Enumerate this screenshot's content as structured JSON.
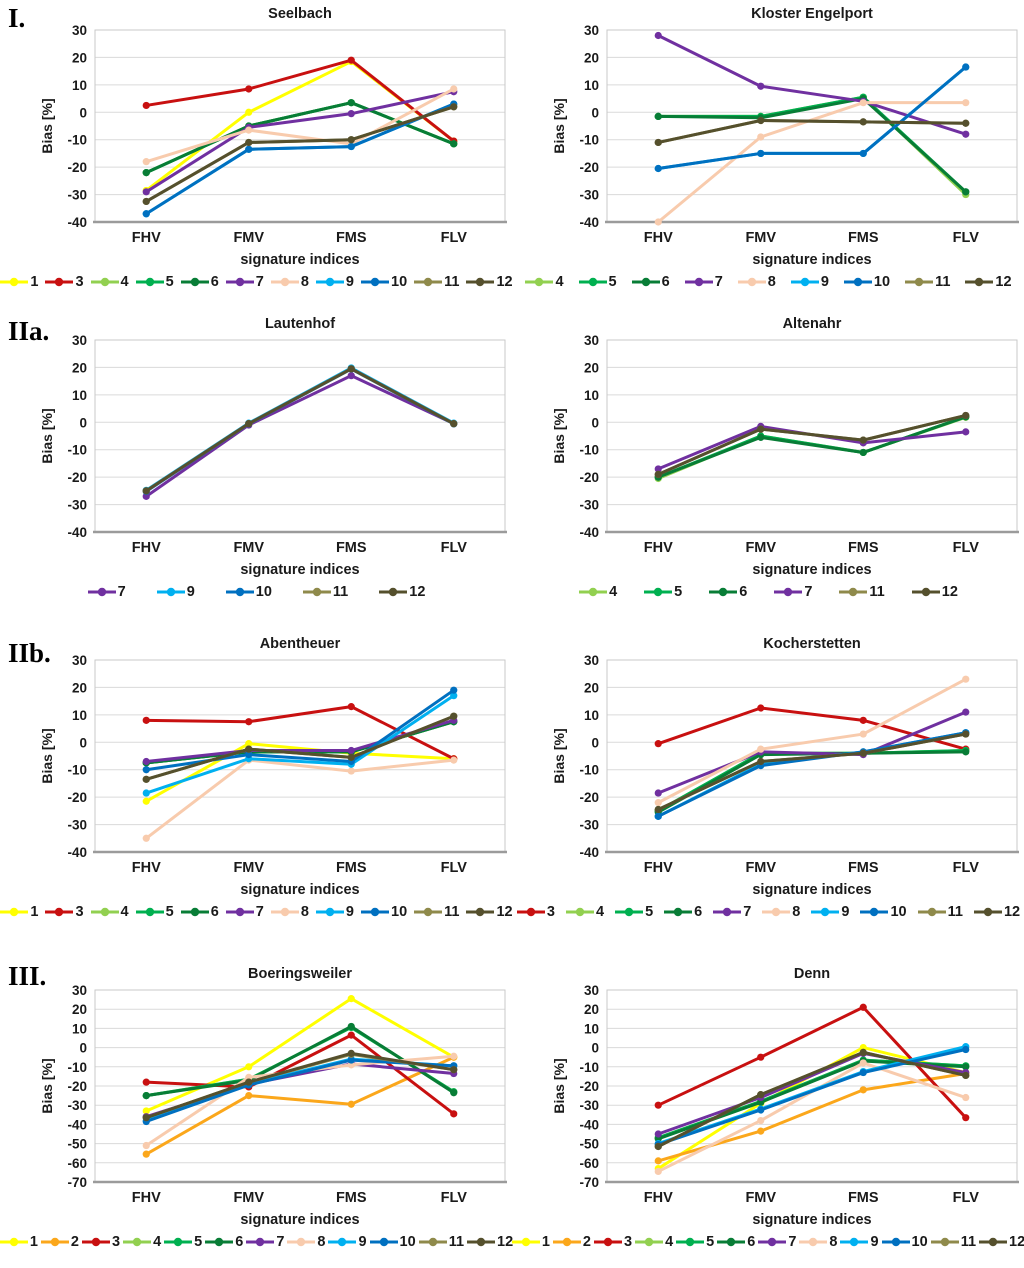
{
  "page": {
    "xlabel": "signature indices",
    "ylabel": "Bias [%]"
  },
  "row_labels": [
    "I.",
    "IIa.",
    "IIb.",
    "III."
  ],
  "series_colors": {
    "1": "#FFFF00",
    "2": "#FBA71B",
    "3": "#C81010",
    "4": "#92D050",
    "5": "#00B050",
    "6": "#087D36",
    "7": "#7030A0",
    "8": "#F8CBAD",
    "9": "#00B0F0",
    "10": "#0070C0",
    "11": "#8F8A4B",
    "12": "#55502D"
  },
  "chart_data": [
    {
      "type": "line",
      "title": "Seelbach",
      "categories": [
        "FHV",
        "FMV",
        "FMS",
        "FLV"
      ],
      "xlabel": "signature indices",
      "ylabel": "Bias [%]",
      "ylim": [
        -40,
        30
      ],
      "ytick_step": 10,
      "grid": true,
      "legend_position": "bottom",
      "series": [
        {
          "name": "1",
          "values": [
            -28.5,
            0,
            18.5,
            -10.5
          ]
        },
        {
          "name": "3",
          "values": [
            2.5,
            8.5,
            19,
            -10.5
          ]
        },
        {
          "name": "4",
          "values": [
            -22,
            -5,
            3.5,
            -11.5
          ]
        },
        {
          "name": "5",
          "values": [
            -22,
            -5,
            3.5,
            -11.5
          ]
        },
        {
          "name": "6",
          "values": [
            -22,
            -5,
            3.5,
            -11.5
          ]
        },
        {
          "name": "7",
          "values": [
            -29,
            -5.5,
            -0.5,
            7.5
          ]
        },
        {
          "name": "8",
          "values": [
            -18,
            -6.5,
            -11.5,
            8.5
          ]
        },
        {
          "name": "9",
          "values": [
            -37,
            -13.5,
            -12.5,
            3
          ]
        },
        {
          "name": "10",
          "values": [
            -37,
            -13.5,
            -12.5,
            3
          ]
        },
        {
          "name": "11",
          "values": [
            -32.5,
            -11,
            -10,
            2
          ]
        },
        {
          "name": "12",
          "values": [
            -32.5,
            -11,
            -10,
            2
          ]
        }
      ]
    },
    {
      "type": "line",
      "title": "Kloster Engelport",
      "categories": [
        "FHV",
        "FMV",
        "FMS",
        "FLV"
      ],
      "xlabel": "signature indices",
      "ylabel": "Bias [%]",
      "ylim": [
        -40,
        30
      ],
      "ytick_step": 10,
      "grid": true,
      "legend_position": "bottom",
      "series": [
        {
          "name": "4",
          "values": [
            -1.5,
            -1.5,
            5.5,
            -30
          ]
        },
        {
          "name": "5",
          "values": [
            -1.5,
            -1.5,
            5.5,
            -29
          ]
        },
        {
          "name": "6",
          "values": [
            -1.5,
            -2,
            5,
            -29
          ]
        },
        {
          "name": "7",
          "values": [
            28,
            9.5,
            4,
            -8
          ]
        },
        {
          "name": "8",
          "values": [
            -40,
            -9,
            3.5,
            3.5
          ]
        },
        {
          "name": "9",
          "values": [
            -20.5,
            -15,
            -15,
            16.5
          ]
        },
        {
          "name": "10",
          "values": [
            -20.5,
            -15,
            -15,
            16.5
          ]
        },
        {
          "name": "11",
          "values": [
            -11,
            -3,
            -3.5,
            -4
          ]
        },
        {
          "name": "12",
          "values": [
            -11,
            -3,
            -3.5,
            -4
          ]
        }
      ]
    },
    {
      "type": "line",
      "title": "Lautenhof",
      "categories": [
        "FHV",
        "FMV",
        "FMS",
        "FLV"
      ],
      "xlabel": "signature indices",
      "ylabel": "Bias [%]",
      "ylim": [
        -40,
        30
      ],
      "ytick_step": 10,
      "grid": true,
      "legend_position": "bottom",
      "series": [
        {
          "name": "7",
          "values": [
            -27,
            -1,
            17,
            -0.5
          ]
        },
        {
          "name": "9",
          "values": [
            -24.8,
            -0.3,
            19.8,
            -0.3
          ]
        },
        {
          "name": "10",
          "values": [
            -25.2,
            -0.6,
            19.4,
            -0.6
          ]
        },
        {
          "name": "11",
          "values": [
            -25,
            -0.5,
            19.5,
            -0.5
          ]
        },
        {
          "name": "12",
          "values": [
            -25,
            -0.5,
            19.5,
            -0.5
          ]
        }
      ]
    },
    {
      "type": "line",
      "title": "Altenahr",
      "categories": [
        "FHV",
        "FMV",
        "FMS",
        "FLV"
      ],
      "xlabel": "signature indices",
      "ylabel": "Bias [%]",
      "ylim": [
        -40,
        30
      ],
      "ytick_step": 10,
      "grid": true,
      "legend_position": "bottom",
      "series": [
        {
          "name": "4",
          "values": [
            -20.5,
            -5,
            -11,
            1.8
          ]
        },
        {
          "name": "5",
          "values": [
            -20,
            -5,
            -11,
            2
          ]
        },
        {
          "name": "6",
          "values": [
            -20,
            -5.5,
            -11,
            2
          ]
        },
        {
          "name": "7",
          "values": [
            -17,
            -1.5,
            -7.5,
            -3.5
          ]
        },
        {
          "name": "11",
          "values": [
            -19,
            -2.5,
            -6.5,
            2.5
          ]
        },
        {
          "name": "12",
          "values": [
            -19,
            -2.5,
            -6.5,
            2.5
          ]
        }
      ]
    },
    {
      "type": "line",
      "title": "Abentheuer",
      "categories": [
        "FHV",
        "FMV",
        "FMS",
        "FLV"
      ],
      "xlabel": "signature indices",
      "ylabel": "Bias [%]",
      "ylim": [
        -40,
        30
      ],
      "ytick_step": 10,
      "grid": true,
      "legend_position": "bottom",
      "series": [
        {
          "name": "1",
          "values": [
            -21.5,
            -0.5,
            -4,
            -6
          ]
        },
        {
          "name": "3",
          "values": [
            8,
            7.5,
            13,
            -6
          ]
        },
        {
          "name": "4",
          "values": [
            -7.5,
            -3.5,
            -3.5,
            7.5
          ]
        },
        {
          "name": "5",
          "values": [
            -7.5,
            -3.5,
            -3.5,
            7.5
          ]
        },
        {
          "name": "6",
          "values": [
            -7.5,
            -3.5,
            -3.5,
            7.5
          ]
        },
        {
          "name": "7",
          "values": [
            -7,
            -3,
            -3,
            8
          ]
        },
        {
          "name": "8",
          "values": [
            -35,
            -6.5,
            -10.5,
            -6.5
          ]
        },
        {
          "name": "9",
          "values": [
            -18.5,
            -6,
            -8,
            17
          ]
        },
        {
          "name": "10",
          "values": [
            -10,
            -4.5,
            -7,
            19
          ]
        },
        {
          "name": "11",
          "values": [
            -13.5,
            -2.5,
            -5.5,
            9.5
          ]
        },
        {
          "name": "12",
          "values": [
            -13.5,
            -2.5,
            -5.5,
            9.5
          ]
        }
      ]
    },
    {
      "type": "line",
      "title": "Kocherstetten",
      "categories": [
        "FHV",
        "FMV",
        "FMS",
        "FLV"
      ],
      "xlabel": "signature indices",
      "ylabel": "Bias [%]",
      "ylim": [
        -40,
        30
      ],
      "ytick_step": 10,
      "grid": true,
      "legend_position": "bottom",
      "series": [
        {
          "name": "3",
          "values": [
            -0.5,
            12.5,
            8,
            -2.5
          ]
        },
        {
          "name": "4",
          "values": [
            -25,
            -4,
            -4,
            -3
          ]
        },
        {
          "name": "5",
          "values": [
            -25,
            -4,
            -4,
            -3
          ]
        },
        {
          "name": "6",
          "values": [
            -25.5,
            -4.5,
            -4,
            -3.5
          ]
        },
        {
          "name": "7",
          "values": [
            -18.5,
            -3.5,
            -4.5,
            11
          ]
        },
        {
          "name": "8",
          "values": [
            -22,
            -2.5,
            3,
            23
          ]
        },
        {
          "name": "9",
          "values": [
            -27,
            -8,
            -3.5,
            3.5
          ]
        },
        {
          "name": "10",
          "values": [
            -27,
            -8.5,
            -3.5,
            3.5
          ]
        },
        {
          "name": "11",
          "values": [
            -24.5,
            -7,
            -4,
            3
          ]
        },
        {
          "name": "12",
          "values": [
            -24.5,
            -7,
            -4,
            3
          ]
        }
      ]
    },
    {
      "type": "line",
      "title": "Boeringsweiler",
      "categories": [
        "FHV",
        "FMV",
        "FMS",
        "FLV"
      ],
      "xlabel": "signature indices",
      "ylabel": "Bias [%]",
      "ylim": [
        -70,
        30
      ],
      "ytick_step": 10,
      "grid": true,
      "legend_position": "bottom",
      "series": [
        {
          "name": "1",
          "values": [
            -33,
            -10,
            25.5,
            -5
          ]
        },
        {
          "name": "2",
          "values": [
            -55.5,
            -25,
            -29.5,
            -5
          ]
        },
        {
          "name": "3",
          "values": [
            -18,
            -20.5,
            6.5,
            -34.5
          ]
        },
        {
          "name": "4",
          "values": [
            -25,
            -16.5,
            10.5,
            -23
          ]
        },
        {
          "name": "5",
          "values": [
            -25,
            -16.5,
            10.5,
            -23
          ]
        },
        {
          "name": "6",
          "values": [
            -25,
            -17,
            11,
            -23.5
          ]
        },
        {
          "name": "7",
          "values": [
            -36,
            -19,
            -8.5,
            -13.5
          ]
        },
        {
          "name": "8",
          "values": [
            -51,
            -15.5,
            -9,
            -4.5
          ]
        },
        {
          "name": "9",
          "values": [
            -38,
            -19,
            -6,
            -9.5
          ]
        },
        {
          "name": "10",
          "values": [
            -38.5,
            -19.5,
            -6.5,
            -9.5
          ]
        },
        {
          "name": "11",
          "values": [
            -36.5,
            -18,
            -3.5,
            -11.5
          ]
        },
        {
          "name": "12",
          "values": [
            -36.5,
            -18,
            -3,
            -11.5
          ]
        }
      ]
    },
    {
      "type": "line",
      "title": "Denn",
      "categories": [
        "FHV",
        "FMV",
        "FMS",
        "FLV"
      ],
      "xlabel": "signature indices",
      "ylabel": "Bias [%]",
      "ylim": [
        -70,
        30
      ],
      "ytick_step": 10,
      "grid": true,
      "legend_position": "bottom",
      "series": [
        {
          "name": "1",
          "values": [
            -63,
            -29,
            0,
            -13
          ]
        },
        {
          "name": "2",
          "values": [
            -59,
            -43.5,
            -22,
            -13.5
          ]
        },
        {
          "name": "3",
          "values": [
            -30,
            -5,
            21,
            -36.5
          ]
        },
        {
          "name": "4",
          "values": [
            -47,
            -28,
            -6.5,
            -9.5
          ]
        },
        {
          "name": "5",
          "values": [
            -47,
            -28,
            -6.5,
            -9.5
          ]
        },
        {
          "name": "6",
          "values": [
            -47.5,
            -28.5,
            -7,
            -10
          ]
        },
        {
          "name": "7",
          "values": [
            -45,
            -26,
            -3,
            -13
          ]
        },
        {
          "name": "8",
          "values": [
            -64.5,
            -38,
            -8,
            -26
          ]
        },
        {
          "name": "9",
          "values": [
            -50,
            -32,
            -12.5,
            0.5
          ]
        },
        {
          "name": "10",
          "values": [
            -50.5,
            -32.5,
            -13,
            -1
          ]
        },
        {
          "name": "11",
          "values": [
            -51.5,
            -24.5,
            -2.5,
            -14.5
          ]
        },
        {
          "name": "12",
          "values": [
            -51.5,
            -24.5,
            -2.5,
            -14.5
          ]
        }
      ]
    }
  ]
}
